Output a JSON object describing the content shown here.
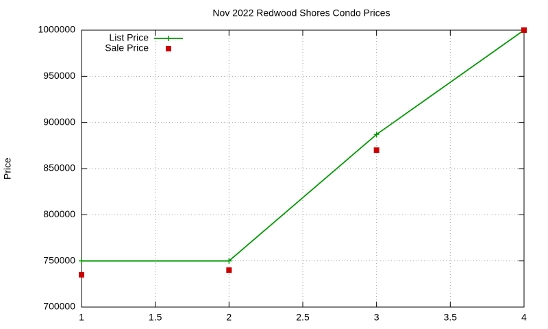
{
  "chart_data": {
    "type": "line",
    "title": "Nov 2022 Redwood Shores Condo Prices",
    "y_label": "Price",
    "x": [
      1,
      2,
      3,
      4
    ],
    "series": [
      {
        "name": "List Price",
        "color": "#009900",
        "line": true,
        "marker": "plus",
        "values": [
          750000,
          750000,
          887000,
          1000000
        ]
      },
      {
        "name": "Sale Price",
        "color": "#cc0000",
        "line": false,
        "marker": "square",
        "values": [
          735000,
          740000,
          870000,
          1000000
        ]
      }
    ],
    "xlim": [
      1,
      4
    ],
    "xticks": [
      1,
      1.5,
      2,
      2.5,
      3,
      3.5,
      4
    ],
    "ylim": [
      700000,
      1000000
    ],
    "yticks": [
      700000,
      750000,
      800000,
      850000,
      900000,
      950000,
      1000000
    ],
    "grid": true,
    "legend": "top-left"
  }
}
